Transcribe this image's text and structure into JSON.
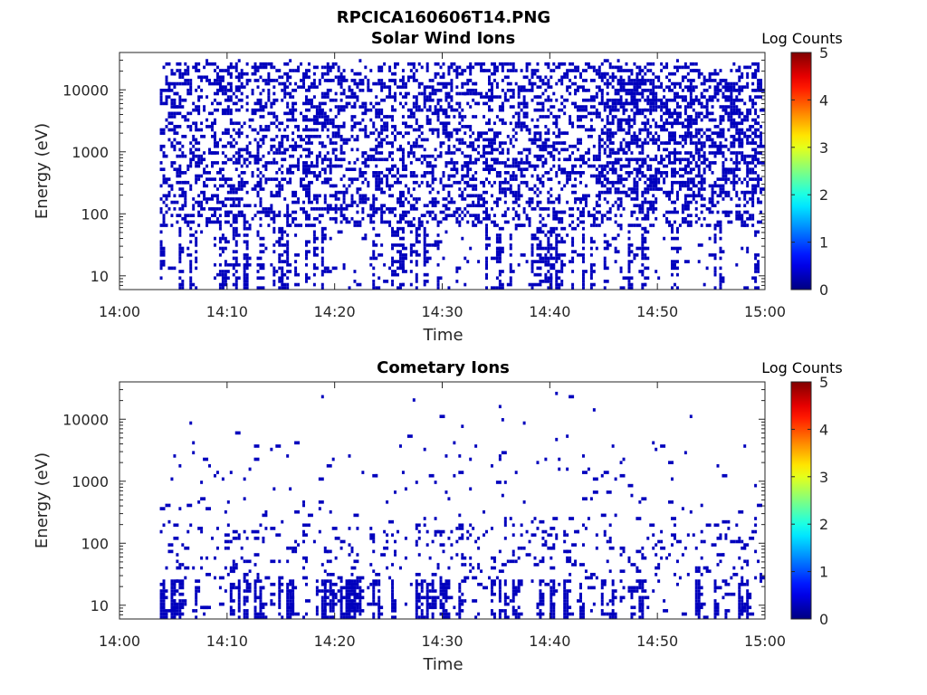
{
  "figure": {
    "title": "RPCICA160606T14.PNG"
  },
  "chart_data": [
    {
      "type": "heatmap",
      "title": "Solar Wind Ions",
      "xlabel": "Time",
      "ylabel": "Energy (eV)",
      "x_ticks": [
        "14:00",
        "14:10",
        "14:20",
        "14:30",
        "14:40",
        "14:50",
        "15:00"
      ],
      "y_ticks": [
        "10",
        "100",
        "1000",
        "10000"
      ],
      "y_scale": "log",
      "xlim_minutes": [
        0,
        60
      ],
      "ylim": [
        6,
        40000
      ],
      "colorbar": {
        "label": "Log Counts",
        "ticks": [
          "0",
          "1",
          "2",
          "3",
          "4",
          "5"
        ],
        "range": [
          0,
          5
        ],
        "colormap": "jet"
      },
      "data_start_minute": 3,
      "density_profile": "dense-above-50eV-with-low-energy-columns",
      "cell_log_counts": 0.3
    },
    {
      "type": "heatmap",
      "title": "Cometary Ions",
      "xlabel": "Time",
      "ylabel": "Energy (eV)",
      "x_ticks": [
        "14:00",
        "14:10",
        "14:20",
        "14:30",
        "14:40",
        "14:50",
        "15:00"
      ],
      "y_ticks": [
        "10",
        "100",
        "1000",
        "10000"
      ],
      "y_scale": "log",
      "xlim_minutes": [
        0,
        60
      ],
      "ylim": [
        6,
        40000
      ],
      "colorbar": {
        "label": "Log Counts",
        "ticks": [
          "0",
          "1",
          "2",
          "3",
          "4",
          "5"
        ],
        "range": [
          0,
          5
        ],
        "colormap": "jet"
      },
      "data_start_minute": 3,
      "density_profile": "sparse-with-dense-low-energy-columns",
      "cell_log_counts": 0.3
    }
  ],
  "colors": {
    "low_count": "#00008f",
    "axis": "#262626"
  }
}
